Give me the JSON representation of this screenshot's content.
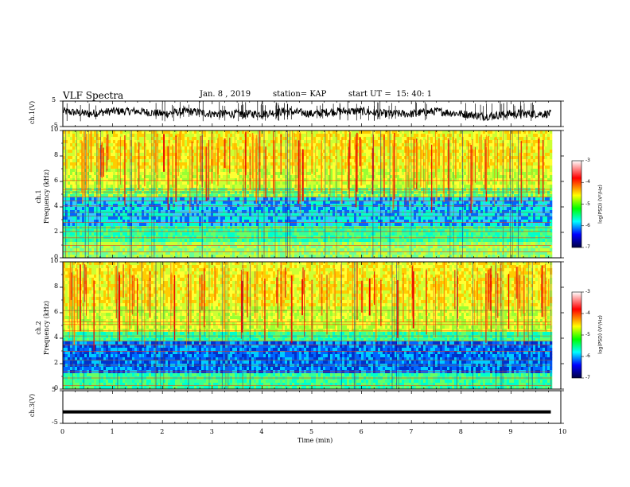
{
  "header": {
    "title": "VLF Spectra",
    "date": "Jan. 8 , 2019",
    "station": "station= KAP",
    "start_ut": "start UT =  15: 40: 1"
  },
  "colorbar": {
    "label": "log(PSD) (V²/Hz)",
    "ticks": [
      "-3",
      "-4",
      "-5",
      "-6",
      "-7"
    ],
    "colors": [
      "#ff0000",
      "#ffff00",
      "#00ff00",
      "#00ffff",
      "#0000ff",
      "#000040"
    ]
  },
  "chart_data": [
    {
      "type": "line",
      "ylabel": "ch.1(V)",
      "ylim": [
        -5,
        5
      ],
      "yticks": [
        "5",
        "-5"
      ],
      "xlim": [
        0,
        10
      ],
      "series": [
        {
          "x": [
            0,
            0.5,
            1,
            1.5,
            2,
            2.5,
            3,
            3.5,
            4,
            4.5,
            5,
            5.5,
            6,
            6.5,
            7,
            7.5,
            8,
            8.5,
            9,
            9.5,
            9.8
          ],
          "values": [
            1,
            0,
            1,
            1,
            0,
            1,
            0,
            0,
            0,
            1,
            0,
            1,
            1,
            0,
            0,
            1,
            0,
            -1,
            0,
            0,
            0
          ]
        }
      ]
    },
    {
      "type": "heatmap",
      "ylabel": "ch.1\nFrequency (kHz)",
      "ylim": [
        0,
        10
      ],
      "yticks": [
        "0",
        "2",
        "4",
        "6",
        "8",
        "10"
      ],
      "xlim": [
        0,
        10
      ]
    },
    {
      "type": "heatmap",
      "ylabel": "ch.2\nFrequency (kHz)",
      "ylim": [
        0,
        10
      ],
      "yticks": [
        "0",
        "2",
        "4",
        "6",
        "8",
        "10"
      ],
      "xlim": [
        0,
        10
      ]
    },
    {
      "type": "line",
      "ylabel": "ch.3(V)",
      "ylim": [
        -5,
        5
      ],
      "yticks": [
        "5",
        "-5"
      ],
      "xlim": [
        0,
        10
      ],
      "xlabel": "Time (min)",
      "xticks": [
        "0",
        "1",
        "2",
        "3",
        "4",
        "5",
        "6",
        "7",
        "8",
        "9",
        "10"
      ],
      "series": [
        {
          "x": [
            0,
            9.8
          ],
          "values": [
            -1.5,
            -1.5
          ]
        }
      ]
    }
  ]
}
